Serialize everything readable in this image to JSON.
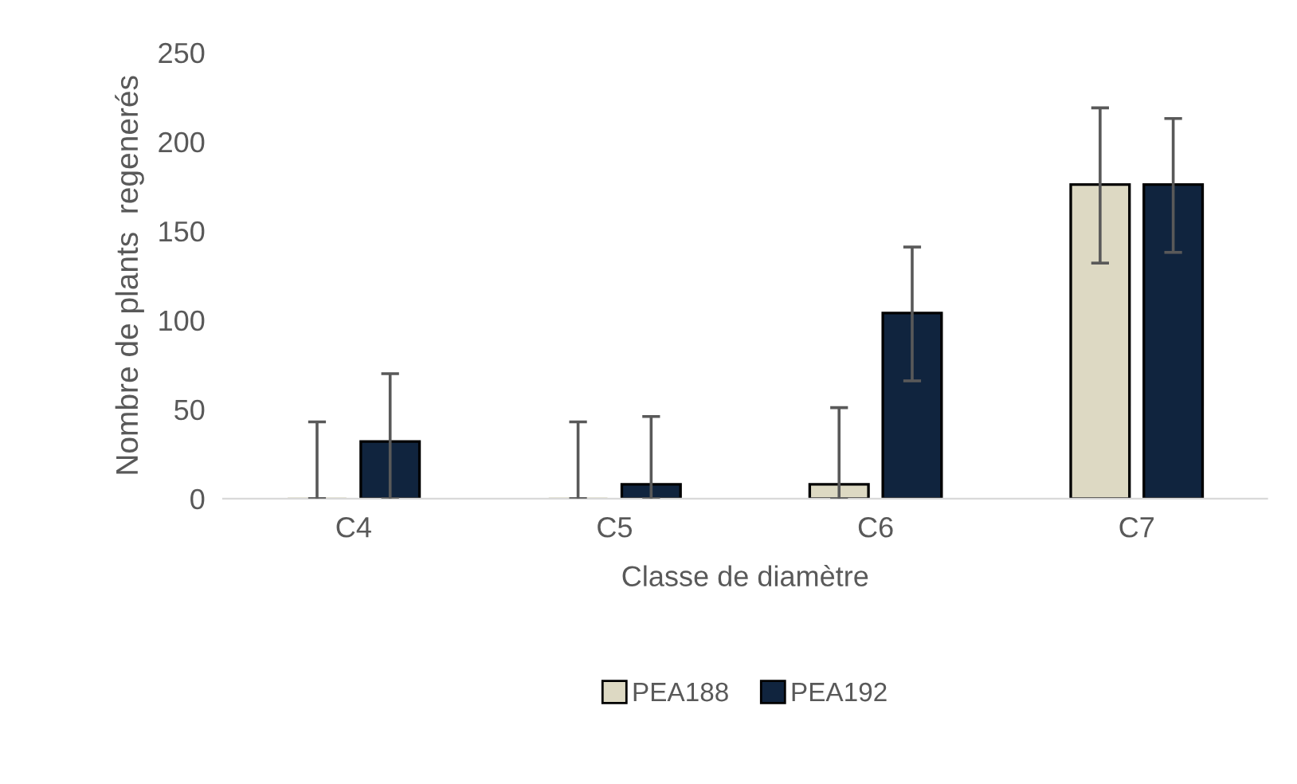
{
  "chart_data": {
    "type": "bar",
    "xlabel": "Classe de diamètre",
    "ylabel": "Nombre de plants  regenerés",
    "categories": [
      "C4",
      "C5",
      "C6",
      "C7"
    ],
    "series": [
      {
        "name": "PEA188",
        "color": "#ddd9c3",
        "values": [
          0,
          0,
          8,
          176
        ],
        "errors": [
          [
            0,
            43
          ],
          [
            0,
            43
          ],
          [
            0,
            51
          ],
          [
            132,
            219
          ]
        ]
      },
      {
        "name": "PEA192",
        "color": "#10243e",
        "values": [
          32,
          8,
          104,
          176
        ],
        "errors": [
          [
            0,
            70
          ],
          [
            0,
            46
          ],
          [
            66,
            141
          ],
          [
            138,
            213
          ]
        ]
      }
    ],
    "ylim": [
      0,
      250
    ],
    "yticks": [
      0,
      50,
      100,
      150,
      200,
      250
    ],
    "grid": false,
    "legend": "bottom"
  }
}
